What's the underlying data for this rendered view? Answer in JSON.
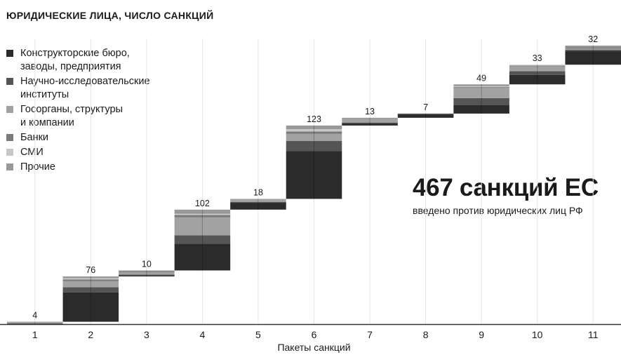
{
  "chart_data": {
    "type": "bar",
    "title": "ЮРИДИЧЕСКИЕ ЛИЦА, ЧИСЛО САНКЦИЙ",
    "xlabel": "Пакеты санкций",
    "categories": [
      "1",
      "2",
      "3",
      "4",
      "5",
      "6",
      "7",
      "8",
      "9",
      "10",
      "11"
    ],
    "totals": [
      4,
      76,
      10,
      102,
      18,
      123,
      13,
      7,
      49,
      33,
      32
    ],
    "cumulative_start": [
      0,
      4,
      80,
      90,
      192,
      210,
      333,
      346,
      353,
      402,
      435
    ],
    "stacking": "waterfall",
    "series": [
      {
        "name": "Конструкторские бюро,\nзаводы, предприятия",
        "color": "#2b2b2b",
        "values": [
          1,
          49,
          2,
          45,
          12,
          80,
          4,
          6,
          14,
          16,
          23
        ]
      },
      {
        "name": "Научно-исследовательские\nинституты",
        "color": "#555555",
        "values": [
          0,
          9,
          1,
          14,
          1,
          17,
          1,
          1,
          12,
          6,
          2
        ]
      },
      {
        "name": "Госорганы, структуры\nи компании",
        "color": "#a2a2a2",
        "values": [
          3,
          10,
          5,
          30,
          5,
          12,
          6,
          0,
          17,
          8,
          3
        ]
      },
      {
        "name": "Банки",
        "color": "#7a7a7a",
        "values": [
          0,
          3,
          1,
          4,
          0,
          4,
          0,
          0,
          2,
          2,
          1
        ]
      },
      {
        "name": "СМИ",
        "color": "#c8c8c8",
        "values": [
          0,
          2,
          0,
          2,
          0,
          4,
          0,
          0,
          1,
          1,
          0
        ]
      },
      {
        "name": "Прочие",
        "color": "#989898",
        "values": [
          0,
          3,
          1,
          7,
          0,
          6,
          2,
          0,
          3,
          0,
          3
        ]
      }
    ],
    "ylim": [
      0,
      467
    ],
    "grid": "vertical",
    "legend": "top-left"
  },
  "annotation": {
    "headline": "467 санкций ЕС",
    "subtext": "введено против юридических лиц РФ"
  }
}
